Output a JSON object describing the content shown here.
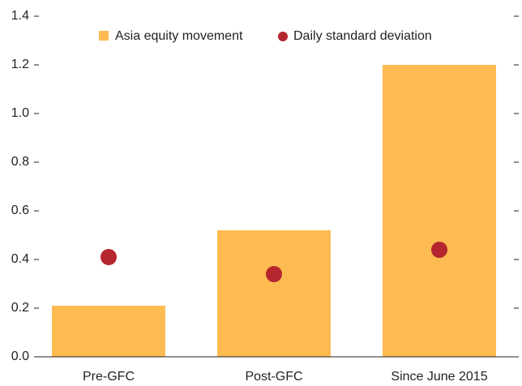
{
  "chart_data": {
    "type": "bar",
    "categories": [
      "Pre-GFC",
      "Post-GFC",
      "Since June 2015"
    ],
    "series": [
      {
        "name": "Asia equity movement",
        "color": "#fdbb52",
        "values": [
          0.21,
          0.52,
          1.2
        ]
      },
      {
        "name": "Daily standard deviation",
        "color": "#b5262e",
        "values": [
          0.41,
          0.34,
          0.44
        ]
      }
    ],
    "ylim": [
      0,
      1.4
    ],
    "yticks": [
      {
        "value": 0,
        "label": "0.0"
      },
      0.2,
      0.4,
      0.6,
      0.8,
      {
        "value": 1,
        "label": "1.0"
      },
      1.2,
      1.4
    ]
  }
}
